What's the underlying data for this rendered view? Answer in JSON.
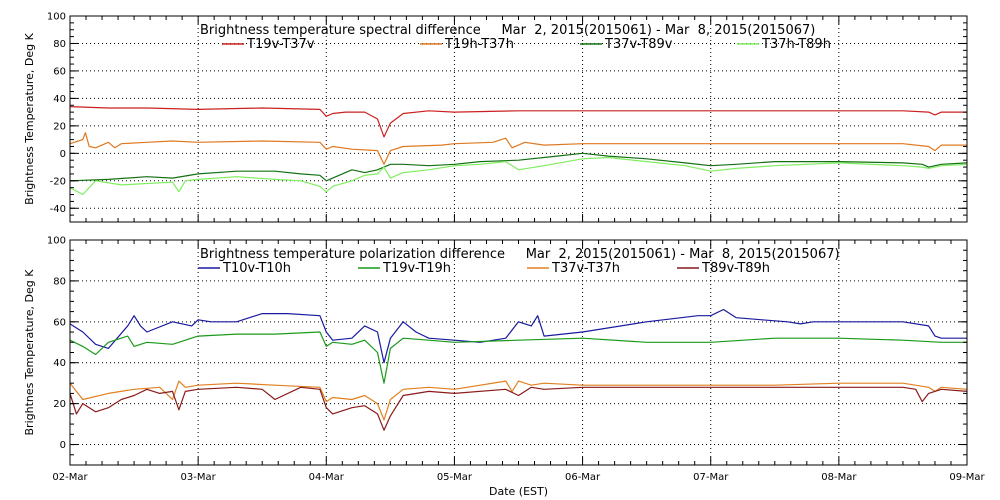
{
  "chart_data": [
    {
      "type": "line",
      "title": "Brightness temperature spectral difference     Mar  2, 2015(2015061) - Mar  8, 2015(2015067)",
      "ylabel": "Brightness Temperature, Deg K",
      "xlabel": "",
      "ylim": [
        -50,
        100
      ],
      "yticks": [
        -40,
        -20,
        0,
        20,
        40,
        60,
        80,
        100
      ],
      "xlim": [
        0,
        7
      ],
      "xtick_labels": [],
      "grid": true,
      "legend_placement": "top",
      "series": [
        {
          "name": "T19v-T37v",
          "color": "#cc2020",
          "x": [
            0,
            0.3,
            0.6,
            1,
            1.5,
            1.95,
            2.0,
            2.05,
            2.15,
            2.3,
            2.4,
            2.45,
            2.5,
            2.6,
            2.8,
            3.0,
            3.5,
            4.0,
            4.5,
            5.0,
            5.5,
            6.0,
            6.5,
            6.7,
            6.75,
            6.8,
            7.0
          ],
          "y": [
            34,
            33,
            33,
            32,
            33,
            32,
            27,
            29,
            30,
            30,
            25,
            12,
            22,
            29,
            31,
            30,
            31,
            31,
            31,
            31,
            31,
            31,
            31,
            30,
            28,
            30,
            30
          ]
        },
        {
          "name": "T19h-T37h",
          "color": "#e07820",
          "x": [
            0,
            0.1,
            0.12,
            0.15,
            0.2,
            0.3,
            0.35,
            0.4,
            0.6,
            0.8,
            1.0,
            1.5,
            1.95,
            2.0,
            2.05,
            2.2,
            2.4,
            2.45,
            2.5,
            2.6,
            2.9,
            3.0,
            3.3,
            3.4,
            3.45,
            3.55,
            3.7,
            4.0,
            4.5,
            5.0,
            5.5,
            6.0,
            6.5,
            6.7,
            6.75,
            6.8,
            7.0
          ],
          "y": [
            7,
            10,
            15,
            5,
            4,
            8,
            4,
            7,
            8,
            9,
            8,
            9,
            8,
            3,
            5,
            3,
            2,
            -8,
            2,
            5,
            6,
            7,
            8,
            11,
            4,
            8,
            6,
            7,
            7,
            7,
            7,
            7,
            7,
            5,
            2,
            6,
            6
          ]
        },
        {
          "name": "T37v-T89v",
          "color": "#157015",
          "x": [
            0,
            0.3,
            0.6,
            0.8,
            1.0,
            1.3,
            1.6,
            1.8,
            1.95,
            2.0,
            2.05,
            2.2,
            2.3,
            2.4,
            2.5,
            2.6,
            2.8,
            3.0,
            3.2,
            3.5,
            3.8,
            4.0,
            4.2,
            4.5,
            4.8,
            5.0,
            5.2,
            5.5,
            6.0,
            6.5,
            6.65,
            6.7,
            6.8,
            7.0
          ],
          "y": [
            -20,
            -19,
            -17,
            -18,
            -15,
            -13,
            -13,
            -15,
            -16,
            -20,
            -18,
            -12,
            -14,
            -12,
            -8,
            -8,
            -9,
            -8,
            -6,
            -5,
            -2,
            0,
            -2,
            -4,
            -7,
            -9,
            -8,
            -6,
            -6,
            -7,
            -8,
            -10,
            -8,
            -7
          ]
        },
        {
          "name": "T37h-T89h",
          "color": "#80ee60",
          "x": [
            0,
            0.1,
            0.2,
            0.4,
            0.6,
            0.8,
            0.85,
            0.9,
            1.0,
            1.3,
            1.6,
            1.8,
            1.95,
            2.0,
            2.05,
            2.2,
            2.3,
            2.4,
            2.45,
            2.5,
            2.6,
            2.8,
            3.0,
            3.2,
            3.4,
            3.5,
            3.7,
            4.0,
            4.2,
            4.5,
            4.8,
            5.0,
            5.2,
            5.5,
            6.0,
            6.5,
            6.65,
            6.7,
            6.8,
            7.0
          ],
          "y": [
            -25,
            -30,
            -20,
            -23,
            -22,
            -21,
            -28,
            -20,
            -19,
            -17,
            -19,
            -20,
            -24,
            -28,
            -24,
            -20,
            -16,
            -15,
            -10,
            -18,
            -14,
            -12,
            -9,
            -8,
            -6,
            -12,
            -9,
            -4,
            -3,
            -6,
            -9,
            -13,
            -11,
            -9,
            -7,
            -9,
            -10,
            -11,
            -9,
            -8
          ]
        }
      ]
    },
    {
      "type": "line",
      "title": "Brightness temperature polarization difference     Mar  2, 2015(2015061) - Mar  8, 2015(2015067)",
      "ylabel": "Brightnes Temperature, Deg K",
      "xlabel": "Date (EST)",
      "ylim": [
        -10,
        100
      ],
      "yticks": [
        0,
        20,
        40,
        60,
        80,
        100
      ],
      "xlim": [
        0,
        7
      ],
      "xtick_labels": [
        "02-Mar",
        "03-Mar",
        "04-Mar",
        "05-Mar",
        "06-Mar",
        "07-Mar",
        "08-Mar",
        "09-Mar"
      ],
      "grid": true,
      "legend_placement": "top",
      "series": [
        {
          "name": "T10v-T10h",
          "color": "#1a1aa0",
          "x": [
            0,
            0.1,
            0.2,
            0.3,
            0.45,
            0.5,
            0.55,
            0.6,
            0.8,
            0.95,
            1.0,
            1.1,
            1.3,
            1.5,
            1.7,
            1.95,
            2.0,
            2.05,
            2.2,
            2.3,
            2.4,
            2.45,
            2.5,
            2.6,
            2.7,
            2.8,
            3.0,
            3.2,
            3.4,
            3.5,
            3.6,
            3.65,
            3.7,
            4.0,
            4.5,
            4.9,
            5.0,
            5.1,
            5.2,
            5.4,
            5.6,
            5.7,
            5.8,
            6.0,
            6.5,
            6.7,
            6.75,
            6.8,
            7.0
          ],
          "y": [
            59,
            55,
            49,
            47,
            58,
            63,
            58,
            55,
            60,
            58,
            61,
            60,
            60,
            64,
            64,
            63,
            55,
            51,
            52,
            58,
            55,
            40,
            52,
            60,
            55,
            52,
            51,
            50,
            52,
            60,
            58,
            63,
            53,
            55,
            60,
            63,
            63,
            66,
            62,
            61,
            60,
            59,
            60,
            60,
            60,
            58,
            53,
            52,
            52
          ]
        },
        {
          "name": "T19v-T19h",
          "color": "#1a9a1a",
          "x": [
            0,
            0.1,
            0.2,
            0.3,
            0.45,
            0.5,
            0.6,
            0.8,
            1.0,
            1.3,
            1.6,
            1.95,
            2.0,
            2.05,
            2.2,
            2.3,
            2.4,
            2.45,
            2.5,
            2.6,
            2.8,
            3.0,
            3.5,
            4.0,
            4.5,
            5.0,
            5.5,
            6.0,
            6.5,
            6.8,
            7.0
          ],
          "y": [
            51,
            48,
            44,
            50,
            53,
            48,
            50,
            49,
            53,
            54,
            54,
            55,
            48,
            50,
            49,
            51,
            45,
            30,
            47,
            52,
            51,
            50,
            51,
            52,
            50,
            50,
            52,
            52,
            51,
            50,
            50
          ]
        },
        {
          "name": "T37v-T37h",
          "color": "#e08020",
          "x": [
            0,
            0.1,
            0.3,
            0.5,
            0.7,
            0.8,
            0.85,
            0.9,
            1.0,
            1.3,
            1.6,
            1.95,
            2.0,
            2.05,
            2.2,
            2.3,
            2.4,
            2.45,
            2.5,
            2.6,
            2.8,
            3.0,
            3.4,
            3.45,
            3.5,
            3.6,
            3.7,
            4.0,
            4.5,
            5.0,
            5.5,
            6.0,
            6.5,
            6.7,
            6.75,
            6.8,
            7.0
          ],
          "y": [
            30,
            22,
            25,
            27,
            28,
            22,
            31,
            28,
            29,
            30,
            29,
            28,
            21,
            23,
            22,
            24,
            20,
            12,
            22,
            27,
            28,
            27,
            31,
            26,
            31,
            29,
            30,
            29,
            29,
            29,
            29,
            30,
            30,
            28,
            26,
            28,
            27
          ]
        },
        {
          "name": "T89v-T89h",
          "color": "#8a1a1a",
          "x": [
            0,
            0.05,
            0.1,
            0.2,
            0.3,
            0.4,
            0.5,
            0.6,
            0.7,
            0.8,
            0.85,
            0.9,
            1.0,
            1.3,
            1.5,
            1.6,
            1.8,
            1.95,
            2.0,
            2.05,
            2.2,
            2.3,
            2.4,
            2.45,
            2.5,
            2.6,
            2.8,
            3.0,
            3.4,
            3.5,
            3.6,
            3.7,
            4.0,
            4.5,
            5.0,
            5.5,
            6.0,
            6.5,
            6.6,
            6.65,
            6.7,
            6.8,
            7.0
          ],
          "y": [
            25,
            15,
            20,
            16,
            18,
            22,
            24,
            27,
            25,
            26,
            17,
            26,
            27,
            28,
            27,
            22,
            28,
            27,
            18,
            15,
            18,
            19,
            15,
            7,
            14,
            24,
            26,
            25,
            27,
            24,
            28,
            27,
            28,
            28,
            28,
            28,
            28,
            28,
            27,
            21,
            25,
            27,
            26
          ]
        }
      ]
    }
  ]
}
